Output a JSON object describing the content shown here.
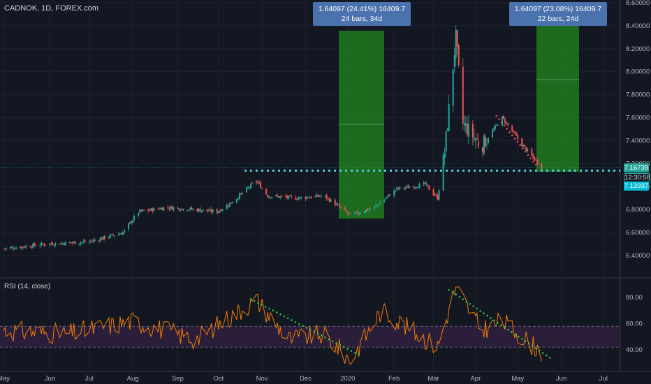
{
  "header": {
    "symbol": "CADNOK, 1D, FOREX.com"
  },
  "rsi_pane": {
    "label": "RSI (14, close)"
  },
  "measure_boxes": [
    {
      "line1": "1.64097 (24.41%) 16409.7",
      "line2": "24 bars, 34d"
    },
    {
      "line1": "1.64097 (23.08%) 16409.7",
      "line2": "22 bars, 24d"
    }
  ],
  "price_tags": {
    "last": "7.16739",
    "countdown": "12:30:58",
    "level": "7.13937"
  },
  "colors": {
    "up": "#26a69a",
    "down": "#ef5350",
    "rsi": "#f57c00",
    "rsi_band": "#2a1e3b",
    "measure_fill": "#1f7a1f",
    "dots": "#4dd0e1",
    "trend": "#2ecc40"
  },
  "chart_data": [
    {
      "type": "candlestick",
      "title": "CADNOK, 1D, FOREX.com",
      "x_ticks": [
        "May",
        "Jun",
        "Jul",
        "Aug",
        "Sep",
        "Oct",
        "Nov",
        "Dec",
        "2020",
        "Feb",
        "Mar",
        "Apr",
        "May",
        "Jun",
        "Jul"
      ],
      "y_ticks": [
        "6.40000",
        "6.60000",
        "6.80000",
        "7.00000",
        "7.20000",
        "7.40000",
        "7.60000",
        "7.80000",
        "8.00000",
        "8.20000",
        "8.40000",
        "8.60000"
      ],
      "ylim": [
        6.3,
        8.6
      ],
      "support_level": 7.13937,
      "last_price": 7.16739,
      "anchors": [
        {
          "date": "2019-05-01",
          "close": 6.46
        },
        {
          "date": "2019-06-01",
          "close": 6.5
        },
        {
          "date": "2019-07-01",
          "close": 6.52
        },
        {
          "date": "2019-07-25",
          "close": 6.6
        },
        {
          "date": "2019-08-05",
          "close": 6.78
        },
        {
          "date": "2019-08-25",
          "close": 6.82
        },
        {
          "date": "2019-09-15",
          "close": 6.8
        },
        {
          "date": "2019-09-30",
          "close": 6.78
        },
        {
          "date": "2019-10-10",
          "close": 6.86
        },
        {
          "date": "2019-10-28",
          "close": 7.05
        },
        {
          "date": "2019-11-05",
          "close": 6.92
        },
        {
          "date": "2019-11-25",
          "close": 6.9
        },
        {
          "date": "2019-12-15",
          "close": 6.92
        },
        {
          "date": "2020-01-03",
          "close": 6.75
        },
        {
          "date": "2020-01-20",
          "close": 6.82
        },
        {
          "date": "2020-02-05",
          "close": 6.98
        },
        {
          "date": "2020-02-25",
          "close": 7.02
        },
        {
          "date": "2020-03-05",
          "close": 6.9
        },
        {
          "date": "2020-03-10",
          "close": 7.3
        },
        {
          "date": "2020-03-18",
          "close": 8.3
        },
        {
          "date": "2020-03-23",
          "close": 7.55
        },
        {
          "date": "2020-04-05",
          "close": 7.35
        },
        {
          "date": "2020-04-20",
          "close": 7.6
        },
        {
          "date": "2020-05-05",
          "close": 7.35
        },
        {
          "date": "2020-05-18",
          "close": 7.17
        }
      ]
    },
    {
      "type": "line",
      "title": "RSI (14, close)",
      "y_ticks": [
        "40.00",
        "60.00",
        "80.00"
      ],
      "ylim": [
        27,
        87
      ],
      "band": [
        42,
        58
      ],
      "anchors": [
        {
          "date": "2019-05-01",
          "value": 55
        },
        {
          "date": "2019-06-15",
          "value": 52
        },
        {
          "date": "2019-08-01",
          "value": 62
        },
        {
          "date": "2019-09-15",
          "value": 48
        },
        {
          "date": "2019-10-28",
          "value": 78
        },
        {
          "date": "2019-11-20",
          "value": 48
        },
        {
          "date": "2019-12-15",
          "value": 52
        },
        {
          "date": "2020-01-03",
          "value": 32
        },
        {
          "date": "2020-01-25",
          "value": 70
        },
        {
          "date": "2020-03-05",
          "value": 42
        },
        {
          "date": "2020-03-18",
          "value": 88
        },
        {
          "date": "2020-04-05",
          "value": 55
        },
        {
          "date": "2020-04-20",
          "value": 62
        },
        {
          "date": "2020-05-18",
          "value": 38
        }
      ]
    }
  ]
}
